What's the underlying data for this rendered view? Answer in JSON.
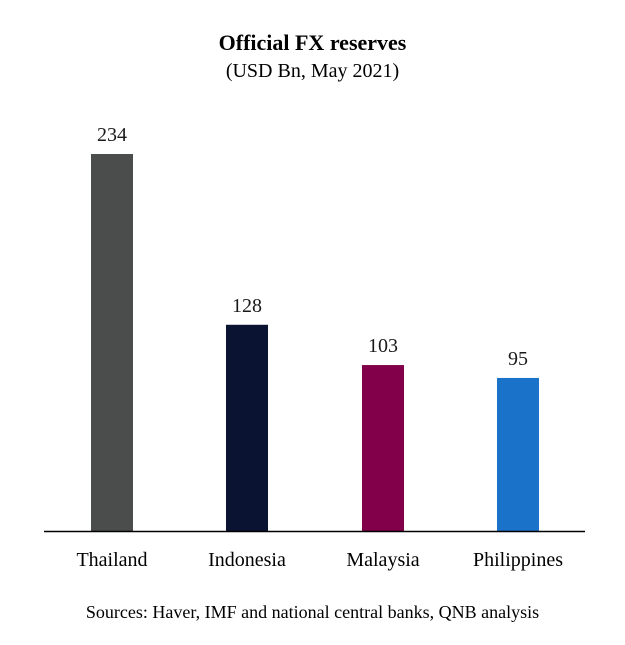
{
  "chart_data": {
    "type": "bar",
    "title": "Official FX reserves",
    "subtitle": "(USD Bn, May 2021)",
    "categories": [
      "Thailand",
      "Indonesia",
      "Malaysia",
      "Philippines"
    ],
    "values": [
      234,
      128,
      103,
      95
    ],
    "colors": [
      "#4a4d4c",
      "#0b1333",
      "#82004a",
      "#1a73c8"
    ],
    "data_labels": [
      "234",
      "128",
      "103",
      "95"
    ],
    "ylim": [
      0,
      234
    ],
    "grid": false,
    "legend": "none"
  },
  "footer": {
    "source": "Sources: Haver, IMF and national central banks, QNB analysis"
  }
}
